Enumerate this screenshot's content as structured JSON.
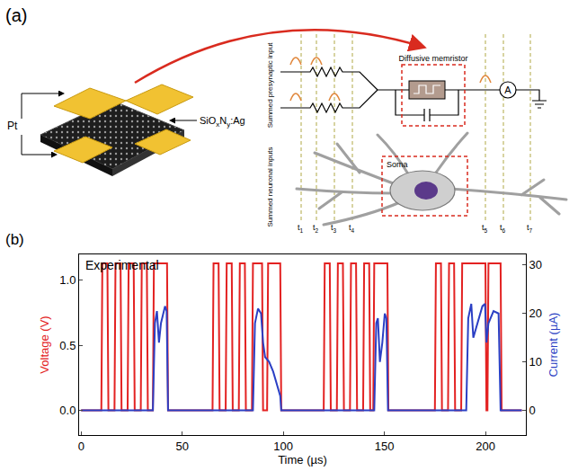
{
  "panel_labels": [
    "(a)",
    "(b)"
  ],
  "diagram": {
    "electrode_label": "Pt",
    "film_label": [
      {
        "t": "SiO"
      },
      {
        "t": "x",
        "sub": true
      },
      {
        "t": "N"
      },
      {
        "t": "y",
        "sub": true
      },
      {
        "t": ":Ag"
      }
    ],
    "memristor_label": "Diffusive memristor",
    "ammeter_label": "A",
    "input_label_top": "Summed presynaptic input",
    "input_label_bottom": "Summed neuronal inputs",
    "soma_label": "Soma",
    "time_labels": [
      {
        "t": "t",
        "sub": "1"
      },
      {
        "t": "t",
        "sub": "2"
      },
      {
        "t": "t",
        "sub": "3"
      },
      {
        "t": "t",
        "sub": "4"
      },
      {
        "t": "t",
        "sub": "5"
      },
      {
        "t": "t",
        "sub": "6"
      },
      {
        "t": "t",
        "sub": "7"
      }
    ]
  },
  "chart_data": {
    "type": "line",
    "annotation": "Experimental",
    "x_label": "Time (µs)",
    "y_label": "Voltage (V)",
    "y2_label": "Current (µA)",
    "xlim": [
      -1,
      220
    ],
    "xticks": [
      0,
      50,
      100,
      150,
      200
    ],
    "ylim": [
      -0.19,
      1.2
    ],
    "yticks": [
      {
        "value": 0,
        "label": "0.0"
      },
      0.5,
      {
        "value": 1,
        "label": "1.0"
      }
    ],
    "y2lim": [
      -5.1,
      32.2
    ],
    "y2ticks": [
      0,
      10,
      20,
      30
    ],
    "grid": false,
    "series": [
      {
        "color": "#e32222",
        "x": [
          0,
          10,
          10.5,
          13,
          13.5,
          16.5,
          17,
          19.5,
          20,
          23,
          23.5,
          26,
          26.5,
          29.5,
          30,
          32.5,
          33,
          35.5,
          36,
          42.5,
          43,
          65,
          65.5,
          68,
          68.5,
          71.5,
          72,
          74.5,
          75,
          78,
          78.5,
          81,
          81.5,
          84.5,
          85,
          89.5,
          90,
          92,
          92.5,
          98.5,
          99,
          120,
          120.5,
          123,
          123.5,
          126.5,
          127,
          129.5,
          130,
          133,
          133.5,
          136,
          136.5,
          139.5,
          140,
          142.5,
          143,
          144.5,
          145,
          151.5,
          152,
          175,
          175.5,
          178,
          178.5,
          181.5,
          182,
          184.5,
          185,
          188,
          188.5,
          200,
          200.5,
          201,
          201.5,
          207.5,
          208,
          218
        ],
        "values": [
          0,
          0,
          1.13,
          1.13,
          0,
          0,
          1.13,
          1.13,
          0,
          0,
          1.13,
          1.13,
          0,
          0,
          1.13,
          1.13,
          0,
          0,
          1.13,
          1.13,
          0,
          0,
          1.13,
          1.13,
          0,
          0,
          1.13,
          1.13,
          0,
          0,
          1.13,
          1.13,
          0,
          0,
          1.13,
          1.13,
          0,
          0,
          1.13,
          1.13,
          0,
          0,
          1.13,
          1.13,
          0,
          0,
          1.13,
          1.13,
          0,
          0,
          1.13,
          1.13,
          0,
          0,
          1.13,
          1.13,
          0,
          0,
          1.13,
          1.13,
          0,
          0,
          1.13,
          1.13,
          0,
          0,
          1.13,
          1.13,
          0,
          0,
          1.13,
          1.13,
          0,
          0,
          1.13,
          1.13,
          0,
          0
        ]
      },
      {
        "color": "#2b3fc4",
        "axis": "y2",
        "x": [
          0,
          35.5,
          36.5,
          37.5,
          38.5,
          39.5,
          41.5,
          42.3,
          43,
          85,
          86,
          87.5,
          89,
          90,
          91,
          93,
          95,
          97,
          98.5,
          99,
          145,
          146,
          146.8,
          147.8,
          149,
          150.2,
          151,
          151.8,
          190.5,
          191.5,
          193,
          194,
          196,
          198.5,
          199.8,
          200.5,
          201.5,
          204,
          206.5,
          207.5,
          218
        ],
        "values": [
          0,
          0,
          18,
          20.5,
          14,
          18,
          21.5,
          20.5,
          0,
          0,
          18,
          21,
          20,
          14,
          11,
          10,
          8,
          5,
          3,
          0,
          0,
          18,
          19,
          10,
          14,
          20,
          19,
          0,
          0,
          19,
          22,
          15,
          18,
          21.5,
          22,
          14,
          18,
          20.5,
          20,
          0,
          0
        ]
      }
    ]
  }
}
